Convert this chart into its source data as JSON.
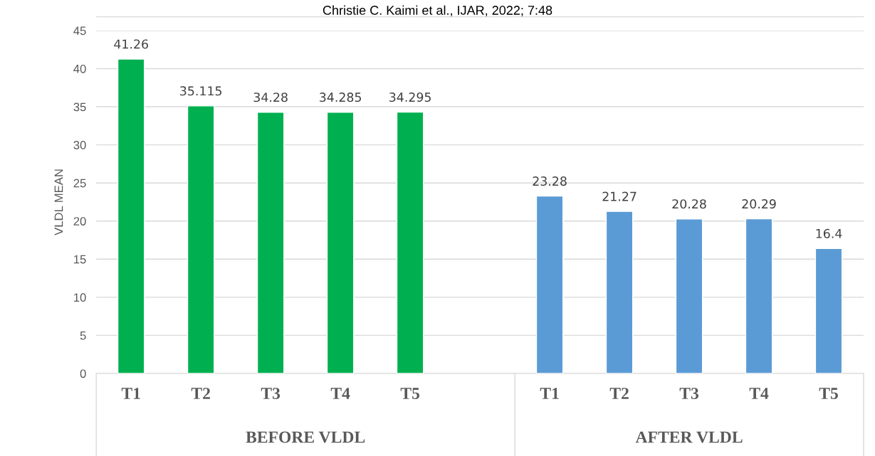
{
  "chart_data": {
    "type": "bar",
    "categories": [
      "T1",
      "T2",
      "T3",
      "T4",
      "T5",
      null,
      "T1",
      "T2",
      "T3",
      "T4",
      "T5"
    ],
    "values": [
      41.26,
      35.115,
      34.28,
      34.285,
      34.295,
      null,
      23.28,
      21.27,
      20.28,
      20.29,
      16.4
    ],
    "colors": [
      "#00b050",
      "#00b050",
      "#00b050",
      "#00b050",
      "#00b050",
      null,
      "#5b9bd5",
      "#5b9bd5",
      "#5b9bd5",
      "#5b9bd5",
      "#5b9bd5"
    ],
    "ylabel": "VLDL MEAN",
    "ylim": [
      0,
      45
    ],
    "yticks": [
      0,
      5,
      10,
      15,
      20,
      25,
      30,
      35,
      40,
      45
    ],
    "grid": "y",
    "data_labels": true,
    "legend": false,
    "annotations": [
      "Christie C. Kaimi et al., IJAR, 2022; 7:48",
      "BEFORE VLDL",
      "AFTER VLDL"
    ]
  }
}
